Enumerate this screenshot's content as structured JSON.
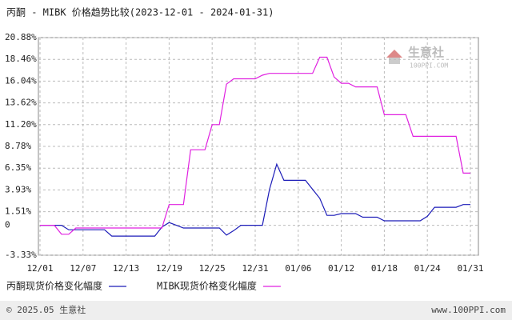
{
  "chart_data": {
    "type": "line",
    "title": "丙酮 - MIBK 价格趋势比较(2023-12-01 - 2024-01-31)",
    "categories": [
      "12/01",
      null,
      null,
      null,
      null,
      null,
      "12/07",
      null,
      null,
      null,
      null,
      null,
      "12/13",
      null,
      null,
      null,
      null,
      null,
      "12/19",
      null,
      null,
      null,
      null,
      null,
      "12/25",
      null,
      null,
      null,
      null,
      null,
      "12/31",
      null,
      null,
      null,
      null,
      null,
      "01/06",
      null,
      null,
      null,
      null,
      null,
      "01/12",
      null,
      null,
      null,
      null,
      null,
      "01/18",
      null,
      null,
      null,
      null,
      null,
      "01/24",
      null,
      null,
      null,
      null,
      null,
      "01/31"
    ],
    "series": [
      {
        "name": "丙酮现货价格变化幅度",
        "color": "#1c1cb8",
        "values": [
          0,
          0,
          0,
          0,
          -0.5,
          -0.5,
          -0.5,
          -0.5,
          -0.5,
          -0.5,
          -1.2,
          -1.2,
          -1.2,
          -1.2,
          -1.2,
          -1.2,
          -1.2,
          -0.2,
          0.3,
          0,
          -0.3,
          -0.3,
          -0.3,
          -0.3,
          -0.3,
          -0.3,
          -1.1,
          -0.6,
          0,
          0,
          0,
          0,
          4,
          6.8,
          5,
          5,
          5,
          5,
          4,
          3,
          1.1,
          1.1,
          1.3,
          1.3,
          1.3,
          0.9,
          0.9,
          0.9,
          0.5,
          0.5,
          0.5,
          0.5,
          0.5,
          0.5,
          1,
          2,
          2,
          2,
          2,
          2.3,
          2.3
        ]
      },
      {
        "name": "MIBK现货价格变化幅度",
        "color": "#e020e0",
        "values": [
          0,
          0,
          0,
          -1,
          -1,
          -0.3,
          -0.3,
          -0.3,
          -0.3,
          -0.3,
          -0.3,
          -0.3,
          -0.3,
          -0.3,
          -0.3,
          -0.3,
          -0.3,
          -0.3,
          2.3,
          2.3,
          2.3,
          8.4,
          8.4,
          8.4,
          11.2,
          11.2,
          15.7,
          16.3,
          16.3,
          16.3,
          16.3,
          16.7,
          16.9,
          16.9,
          16.9,
          16.9,
          16.9,
          16.9,
          16.9,
          18.7,
          18.7,
          16.5,
          15.8,
          15.8,
          15.4,
          15.4,
          15.4,
          15.4,
          12.3,
          12.3,
          12.3,
          12.3,
          9.9,
          9.9,
          9.9,
          9.9,
          9.9,
          9.9,
          9.9,
          5.8,
          5.8
        ]
      }
    ],
    "ylim": [
      -3.33,
      20.88
    ],
    "yticks": [
      {
        "value": -3.33,
        "label": "-3.33%"
      },
      0,
      {
        "value": 1.51,
        "label": "1.51%"
      },
      {
        "value": 3.93,
        "label": "3.93%"
      },
      {
        "value": 6.35,
        "label": "6.35%"
      },
      {
        "value": 8.78,
        "label": "8.78%"
      },
      {
        "value": 11.2,
        "label": "11.20%"
      },
      {
        "value": 13.62,
        "label": "13.62%"
      },
      {
        "value": 16.04,
        "label": "16.04%"
      },
      {
        "value": 18.46,
        "label": "18.46%"
      },
      {
        "value": 20.88,
        "label": "20.88%"
      }
    ],
    "grid": true
  },
  "watermark": {
    "brand": "生意社",
    "site": "100PPI.COM"
  },
  "footer": {
    "copyright": "© 2025.05 生意社",
    "site": "www.100PPI.com"
  }
}
